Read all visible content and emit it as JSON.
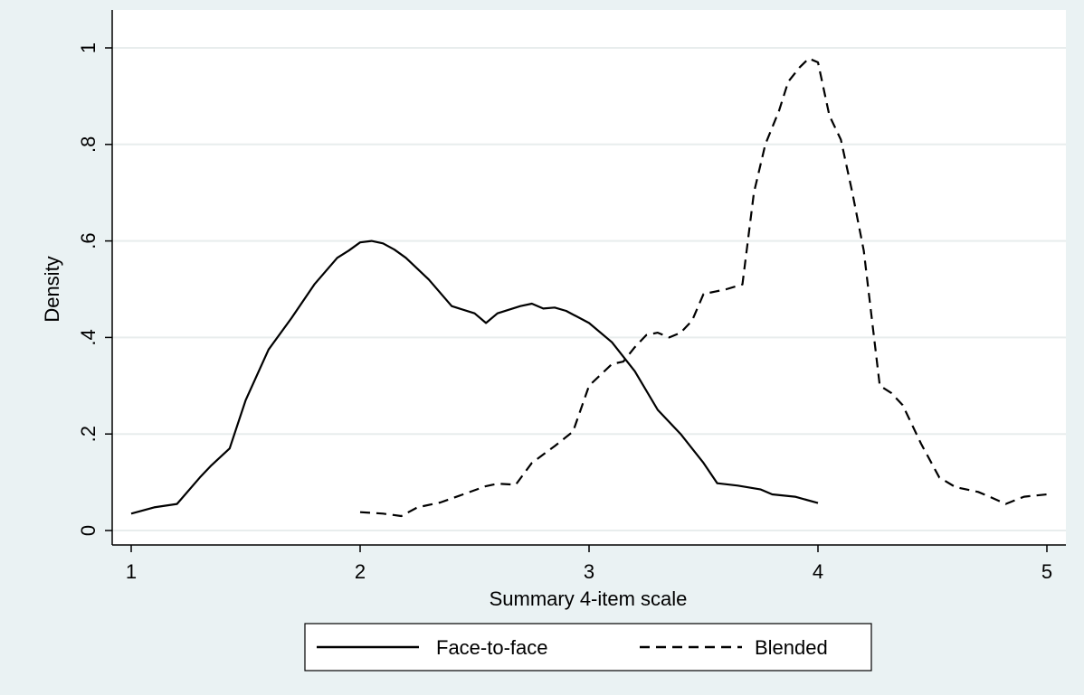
{
  "chart_data": {
    "type": "line",
    "xlabel": "Summary 4-item scale",
    "ylabel": "Density",
    "xlim": [
      1,
      5
    ],
    "ylim": [
      0,
      1
    ],
    "x_ticks": [
      1,
      2,
      3,
      4,
      5
    ],
    "x_tick_labels": [
      "1",
      "2",
      "3",
      "4",
      "5"
    ],
    "y_ticks": [
      0,
      0.2,
      0.4,
      0.6,
      0.8,
      1
    ],
    "y_tick_labels": [
      "0",
      ".2",
      ".4",
      ".6",
      ".8",
      "1"
    ],
    "grid": "horizontal",
    "legend_position": "bottom",
    "series": [
      {
        "name": "Face-to-face",
        "style": "solid",
        "color": "#000000",
        "x": [
          1.0,
          1.1,
          1.2,
          1.3,
          1.35,
          1.43,
          1.5,
          1.6,
          1.7,
          1.8,
          1.9,
          1.95,
          2.0,
          2.05,
          2.1,
          2.15,
          2.2,
          2.3,
          2.4,
          2.5,
          2.55,
          2.6,
          2.7,
          2.75,
          2.8,
          2.85,
          2.9,
          3.0,
          3.1,
          3.2,
          3.3,
          3.4,
          3.5,
          3.56,
          3.65,
          3.75,
          3.8,
          3.9,
          4.0
        ],
        "values": [
          0.035,
          0.048,
          0.055,
          0.11,
          0.135,
          0.17,
          0.27,
          0.375,
          0.44,
          0.51,
          0.565,
          0.58,
          0.597,
          0.6,
          0.595,
          0.582,
          0.565,
          0.52,
          0.465,
          0.45,
          0.43,
          0.45,
          0.465,
          0.47,
          0.46,
          0.462,
          0.455,
          0.43,
          0.39,
          0.33,
          0.25,
          0.2,
          0.14,
          0.098,
          0.093,
          0.085,
          0.075,
          0.07,
          0.057
        ]
      },
      {
        "name": "Blended",
        "style": "dashed",
        "color": "#000000",
        "x": [
          2.0,
          2.1,
          2.18,
          2.25,
          2.35,
          2.45,
          2.55,
          2.6,
          2.68,
          2.75,
          2.85,
          2.93,
          3.0,
          3.1,
          3.15,
          3.2,
          3.25,
          3.3,
          3.35,
          3.4,
          3.45,
          3.5,
          3.55,
          3.6,
          3.67,
          3.72,
          3.77,
          3.83,
          3.87,
          3.92,
          3.96,
          4.0,
          4.05,
          4.1,
          4.15,
          4.2,
          4.27,
          4.32,
          4.37,
          4.45,
          4.53,
          4.6,
          4.7,
          4.75,
          4.82,
          4.9,
          5.0
        ],
        "values": [
          0.038,
          0.035,
          0.03,
          0.048,
          0.058,
          0.075,
          0.092,
          0.097,
          0.095,
          0.14,
          0.175,
          0.205,
          0.3,
          0.345,
          0.35,
          0.38,
          0.405,
          0.41,
          0.4,
          0.41,
          0.435,
          0.49,
          0.495,
          0.5,
          0.51,
          0.7,
          0.8,
          0.87,
          0.93,
          0.96,
          0.978,
          0.97,
          0.86,
          0.81,
          0.7,
          0.58,
          0.3,
          0.285,
          0.26,
          0.18,
          0.11,
          0.09,
          0.08,
          0.07,
          0.055,
          0.07,
          0.075
        ]
      }
    ]
  }
}
